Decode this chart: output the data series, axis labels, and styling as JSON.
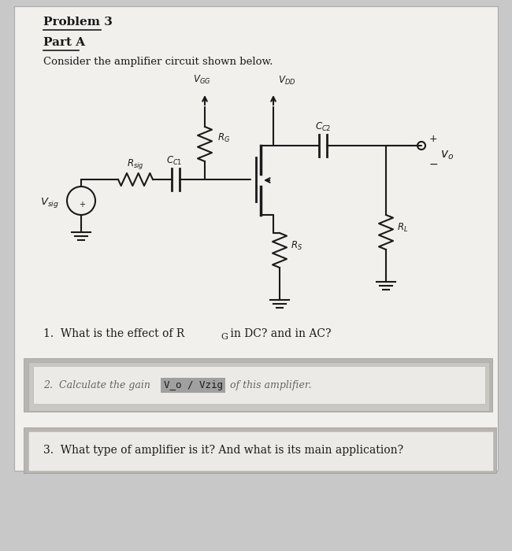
{
  "title1": "Problem 3",
  "title2": "Part A",
  "subtitle": "Consider the amplifier circuit shown below.",
  "q1_prefix": "1.  What is the effect of R",
  "q1_sub": "G",
  "q1_suffix": " in DC? and in AC?",
  "q2_prefix": "2.  Calculate the gain ",
  "q2_highlight": "V_o / Vzig",
  "q2_suffix": " of this amplifier.",
  "q3": "3.  What type of amplifier is it? And what is its main application?",
  "bg_color": "#c8c8c8",
  "paper_color": "#f2f0ed",
  "highlight_color": "#a0a0a0",
  "circuit_color": "#1a1a1a",
  "font_color": "#1a1a1a",
  "gray_card_color": "#d0ceca",
  "white_card_color": "#eceae6"
}
